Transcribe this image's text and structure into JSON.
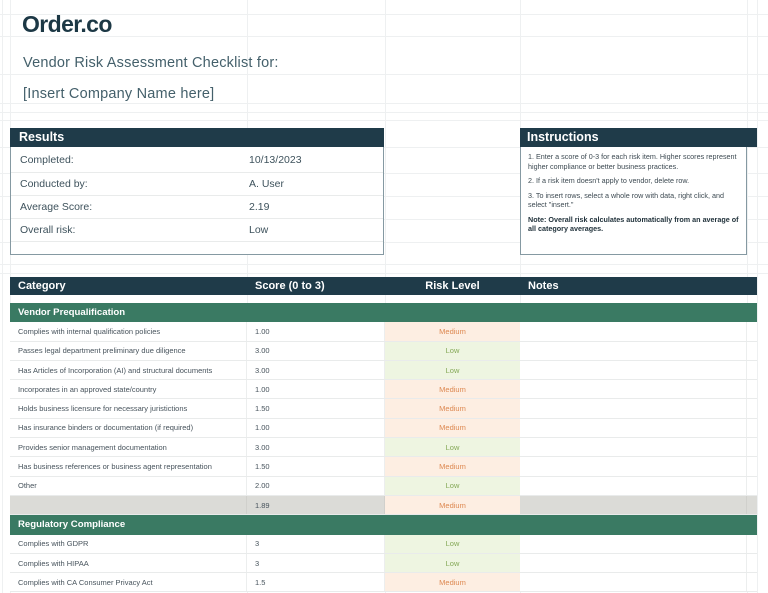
{
  "brand": {
    "logo_text": "Order.co"
  },
  "page_title": {
    "line1": "Vendor Risk Assessment Checklist for:",
    "line2": "[Insert Company Name here]"
  },
  "results": {
    "title": "Results",
    "fields": [
      {
        "label": "Completed:",
        "value": "10/13/2023"
      },
      {
        "label": "Conducted by:",
        "value": "A. User"
      },
      {
        "label": "Average Score:",
        "value": "2.19"
      },
      {
        "label": "Overall risk:",
        "value": "Low"
      }
    ]
  },
  "instructions": {
    "title": "Instructions",
    "steps": [
      "1. Enter a score of 0-3 for each risk item. Higher scores represent higher compliance or better business practices.",
      "2. If a risk item doesn't apply to vendor, delete row.",
      "3. To insert rows, select a whole row with data, right click, and select \"insert.\""
    ],
    "note": "Note: Overall risk calculates automatically from an average of all category averages."
  },
  "checklist": {
    "columns": {
      "category": "Category",
      "score": "Score (0 to 3)",
      "risk": "Risk Level",
      "notes": "Notes"
    },
    "sections": [
      {
        "name": "Vendor Prequalification",
        "rows": [
          {
            "category": "Complies with internal qualification policies",
            "score": "1.00",
            "risk": "Medium",
            "notes": ""
          },
          {
            "category": "Passes legal department preliminary due diligence",
            "score": "3.00",
            "risk": "Low",
            "notes": ""
          },
          {
            "category": "Has Articles of Incorporation (AI) and structural documents",
            "score": "3.00",
            "risk": "Low",
            "notes": ""
          },
          {
            "category": "Incorporates in an approved state/country",
            "score": "1.00",
            "risk": "Medium",
            "notes": ""
          },
          {
            "category": "Holds business licensure for necessary juristictions",
            "score": "1.50",
            "risk": "Medium",
            "notes": ""
          },
          {
            "category": "Has insurance binders or documentation (if required)",
            "score": "1.00",
            "risk": "Medium",
            "notes": ""
          },
          {
            "category": "Provides senior management documentation",
            "score": "3.00",
            "risk": "Low",
            "notes": ""
          },
          {
            "category": "Has business references or business agent representation",
            "score": "1.50",
            "risk": "Medium",
            "notes": ""
          },
          {
            "category": "Other",
            "score": "2.00",
            "risk": "Low",
            "notes": ""
          }
        ],
        "summary": {
          "category": "",
          "score": "1.89",
          "risk": "Medium",
          "notes": ""
        }
      },
      {
        "name": "Regulatory Compliance",
        "rows": [
          {
            "category": "Complies with GDPR",
            "score": "3",
            "risk": "Low",
            "notes": ""
          },
          {
            "category": "Complies with HIPAA",
            "score": "3",
            "risk": "Low",
            "notes": ""
          },
          {
            "category": "Complies with CA Consumer Privacy Act",
            "score": "1.5",
            "risk": "Medium",
            "notes": ""
          }
        ]
      }
    ]
  },
  "colors": {
    "navy": "#1f3b49",
    "section_green": "#3a7a63",
    "risk_medium_bg": "#fdeee2",
    "risk_medium_text": "#dd8850",
    "risk_low_bg": "#eef5e1",
    "risk_low_text": "#85a958",
    "summary_row_bg": "#dbdbd7"
  }
}
